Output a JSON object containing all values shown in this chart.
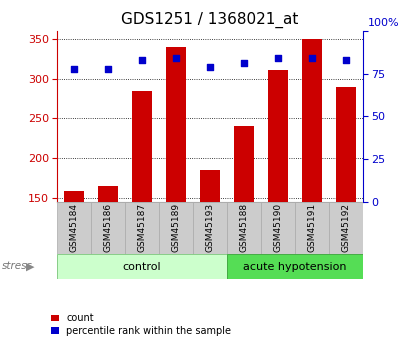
{
  "title": "GDS1251 / 1368021_at",
  "samples": [
    "GSM45184",
    "GSM45186",
    "GSM45187",
    "GSM45189",
    "GSM45193",
    "GSM45188",
    "GSM45190",
    "GSM45191",
    "GSM45192"
  ],
  "counts": [
    158,
    165,
    284,
    340,
    185,
    240,
    311,
    350,
    289
  ],
  "percentiles": [
    78,
    78,
    83,
    84,
    79,
    81,
    84,
    84,
    83
  ],
  "control_indices": [
    0,
    1,
    2,
    3,
    4
  ],
  "acute_indices": [
    5,
    6,
    7,
    8
  ],
  "ylim_left": [
    145,
    360
  ],
  "ylim_right": [
    0,
    100
  ],
  "yticks_left": [
    150,
    200,
    250,
    300,
    350
  ],
  "yticks_right": [
    0,
    25,
    50,
    75,
    100
  ],
  "bar_color": "#cc0000",
  "scatter_color": "#0000cc",
  "bar_width": 0.6,
  "control_bg_light": "#ccffcc",
  "acute_bg_bright": "#55dd55",
  "label_bg": "#cccccc",
  "stress_label": "stress",
  "control_label": "control",
  "acute_label": "acute hypotension",
  "legend_count": "count",
  "legend_percentile": "percentile rank within the sample",
  "title_fontsize": 11,
  "tick_fontsize": 8,
  "label_fontsize": 6.5,
  "group_fontsize": 8
}
